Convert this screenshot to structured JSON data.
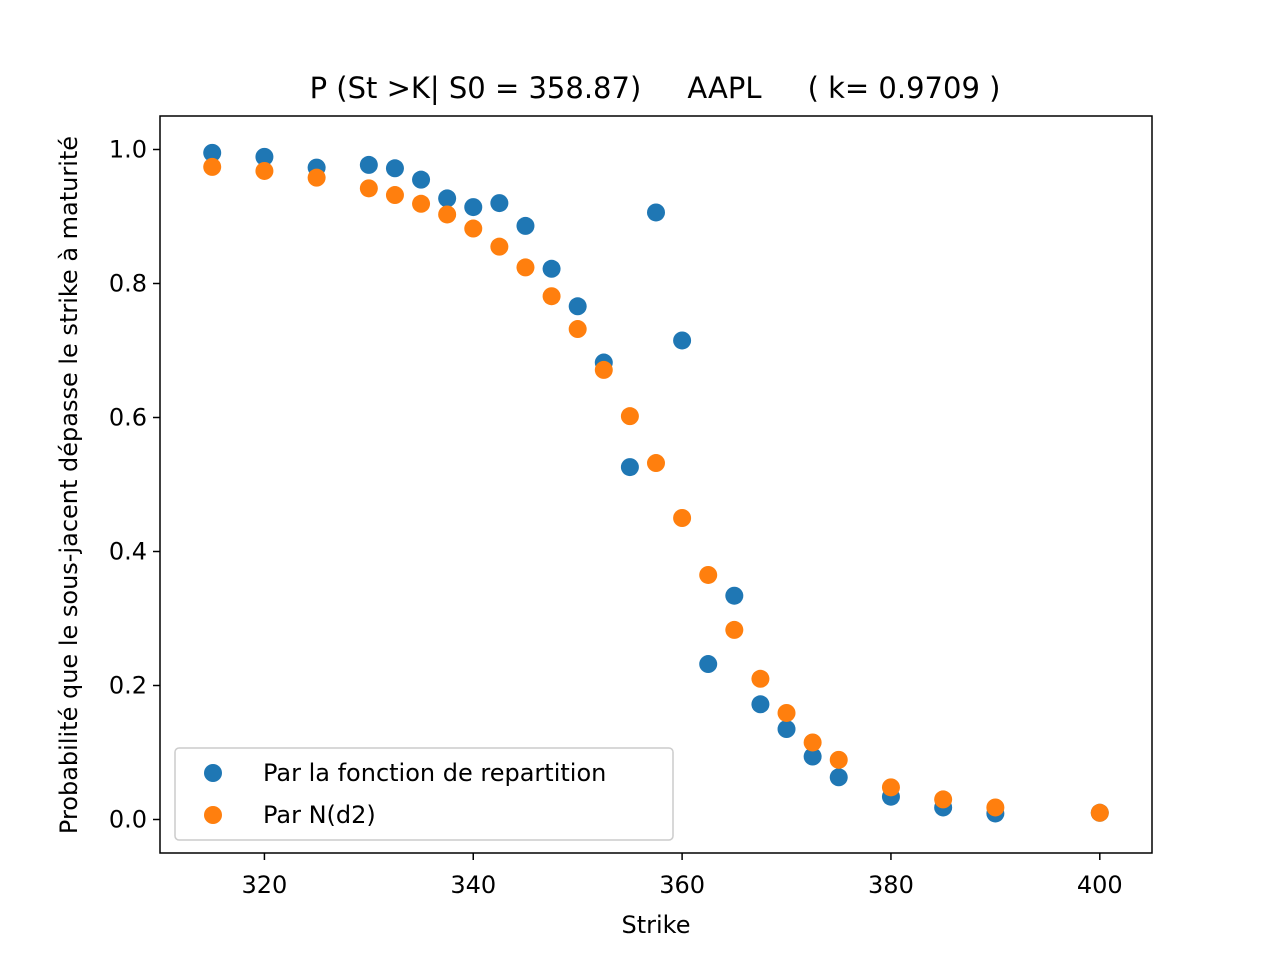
{
  "chart_data": {
    "type": "scatter",
    "title": "P (St >K| S0 = 358.87)     AAPL     ( k= 0.9709 )",
    "xlabel": "Strike",
    "ylabel": "Probabilité que le sous-jacent dépasse le strike à maturité",
    "xlim": [
      310,
      405
    ],
    "ylim": [
      -0.05,
      1.05
    ],
    "xticks": [
      320,
      340,
      360,
      380,
      400
    ],
    "yticks": [
      0.0,
      0.2,
      0.4,
      0.6,
      0.8,
      1.0
    ],
    "xtick_labels": [
      "320",
      "340",
      "360",
      "380",
      "400"
    ],
    "ytick_labels": [
      "0.0",
      "0.2",
      "0.4",
      "0.6",
      "0.8",
      "1.0"
    ],
    "grid": false,
    "legend": {
      "placement": "lower-left"
    },
    "series": [
      {
        "name": "Par la fonction de repartition",
        "color": "#1f77b4",
        "points": [
          [
            315,
            0.995
          ],
          [
            320,
            0.989
          ],
          [
            325,
            0.973
          ],
          [
            330,
            0.977
          ],
          [
            332.5,
            0.972
          ],
          [
            335,
            0.955
          ],
          [
            337.5,
            0.927
          ],
          [
            340,
            0.914
          ],
          [
            342.5,
            0.92
          ],
          [
            345,
            0.886
          ],
          [
            347.5,
            0.822
          ],
          [
            350,
            0.766
          ],
          [
            352.5,
            0.682
          ],
          [
            355,
            0.526
          ],
          [
            357.5,
            0.906
          ],
          [
            360,
            0.715
          ],
          [
            362.5,
            0.232
          ],
          [
            365,
            0.334
          ],
          [
            367.5,
            0.172
          ],
          [
            370,
            0.135
          ],
          [
            372.5,
            0.094
          ],
          [
            375,
            0.063
          ],
          [
            380,
            0.034
          ],
          [
            385,
            0.018
          ],
          [
            390,
            0.009
          ],
          [
            400,
            0.01
          ]
        ]
      },
      {
        "name": "Par N(d2)",
        "color": "#ff7f0e",
        "points": [
          [
            315,
            0.974
          ],
          [
            320,
            0.968
          ],
          [
            325,
            0.958
          ],
          [
            330,
            0.942
          ],
          [
            332.5,
            0.932
          ],
          [
            335,
            0.919
          ],
          [
            337.5,
            0.903
          ],
          [
            340,
            0.882
          ],
          [
            342.5,
            0.855
          ],
          [
            345,
            0.824
          ],
          [
            347.5,
            0.781
          ],
          [
            350,
            0.732
          ],
          [
            352.5,
            0.671
          ],
          [
            355,
            0.602
          ],
          [
            357.5,
            0.532
          ],
          [
            360,
            0.45
          ],
          [
            362.5,
            0.365
          ],
          [
            365,
            0.283
          ],
          [
            367.5,
            0.21
          ],
          [
            370,
            0.159
          ],
          [
            372.5,
            0.115
          ],
          [
            375,
            0.089
          ],
          [
            380,
            0.048
          ],
          [
            385,
            0.03
          ],
          [
            390,
            0.018
          ],
          [
            400,
            0.01
          ]
        ]
      }
    ]
  }
}
